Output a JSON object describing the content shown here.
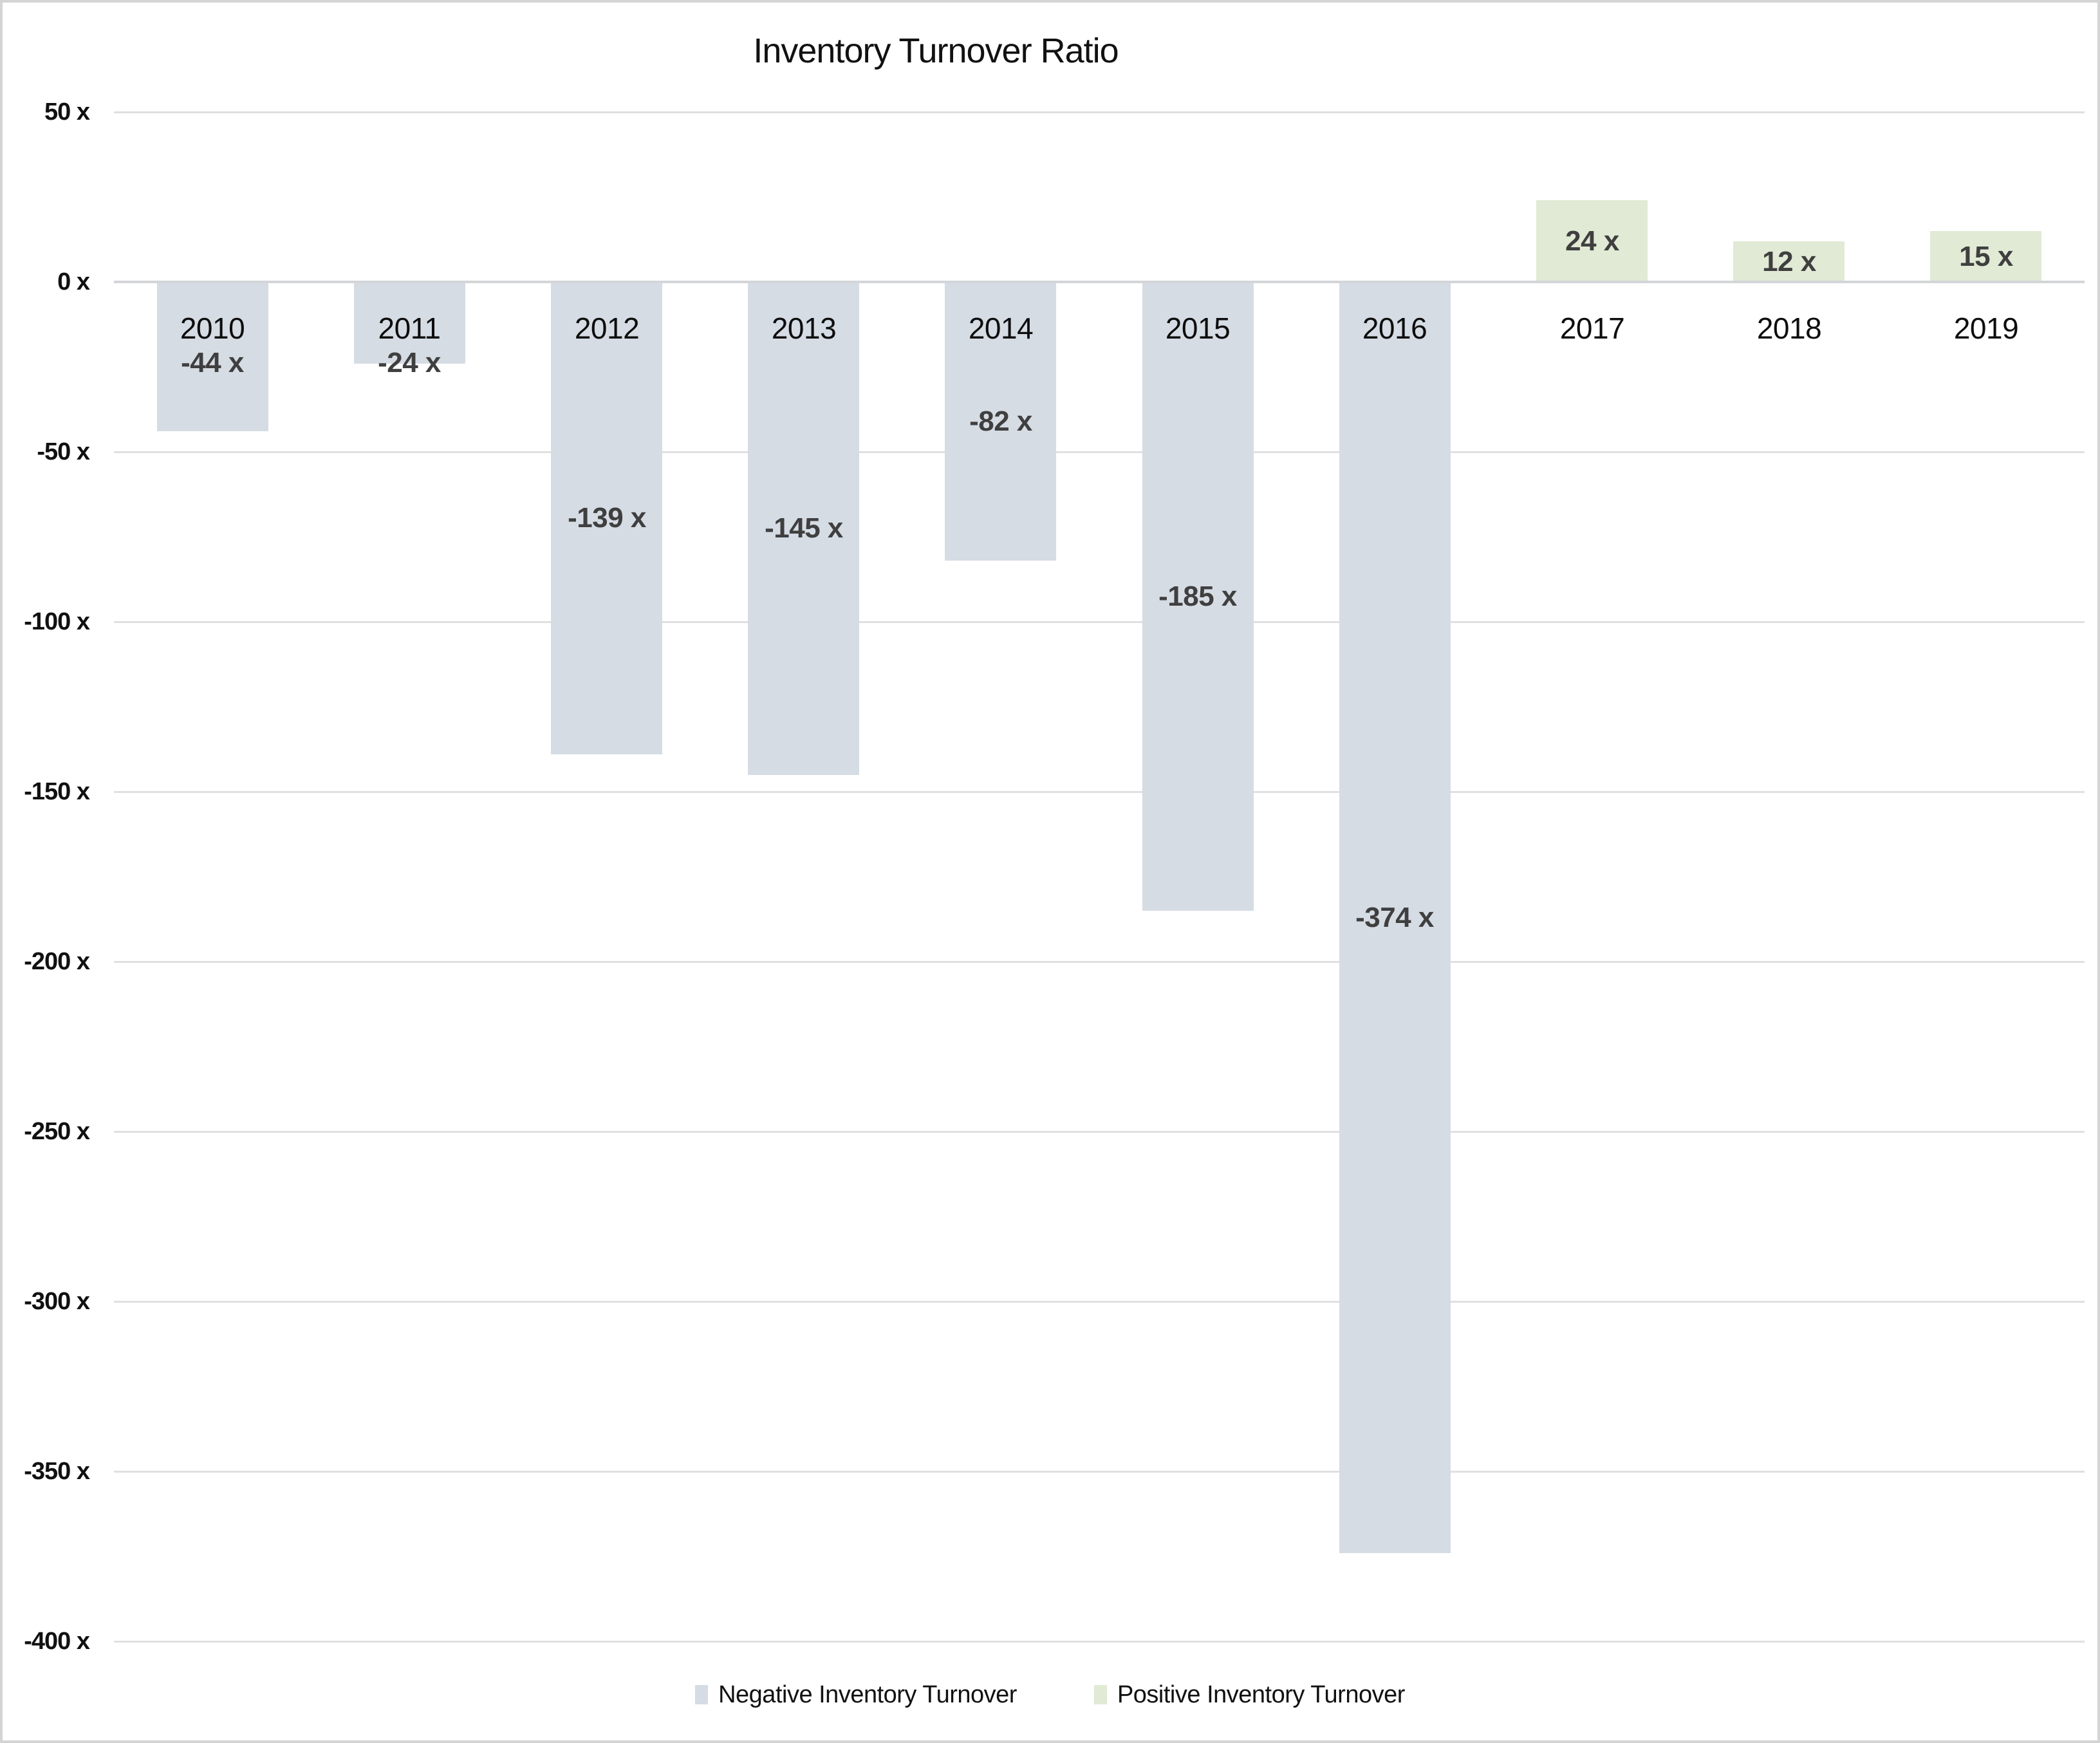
{
  "frame": {
    "background": "#ffffff",
    "border_color": "#d4d4d4"
  },
  "chart_data": {
    "type": "bar",
    "title": "Inventory Turnover Ratio",
    "categories": [
      "2010",
      "2011",
      "2012",
      "2013",
      "2014",
      "2015",
      "2016",
      "2017",
      "2018",
      "2019"
    ],
    "values": [
      -44,
      -24,
      -139,
      -145,
      -82,
      -185,
      -374,
      24,
      12,
      15
    ],
    "point_labels": [
      "-44 x",
      "-24 x",
      "-139 x",
      "-145 x",
      "-82 x",
      "-185 x",
      "-374 x",
      "24 x",
      "12 x",
      "15 x"
    ],
    "series": [
      {
        "name": "Negative Inventory Turnover",
        "color": "#d6dce4",
        "rule": "values < 0"
      },
      {
        "name": "Positive Inventory Turnover",
        "color": "#e0ead5",
        "rule": "values >= 0"
      }
    ],
    "unit_suffix": "x",
    "ylim": [
      -400,
      50
    ],
    "ytick_step": 50,
    "ytick_values": [
      50,
      0,
      -50,
      -100,
      -150,
      -200,
      -250,
      -300,
      -350,
      -400
    ],
    "ytick_labels": [
      "50 x",
      "0 x",
      "-50 x",
      "-100 x",
      "-150 x",
      "-200 x",
      "-250 x",
      "-300 x",
      "-350 x",
      "-400 x"
    ],
    "grid": true,
    "legend_position": "bottom",
    "colors": {
      "gridline": "#e0e0e0",
      "zero_line": "#d3d5d8",
      "data_label": "#3f3f3f",
      "axis_text": "#111111"
    }
  }
}
